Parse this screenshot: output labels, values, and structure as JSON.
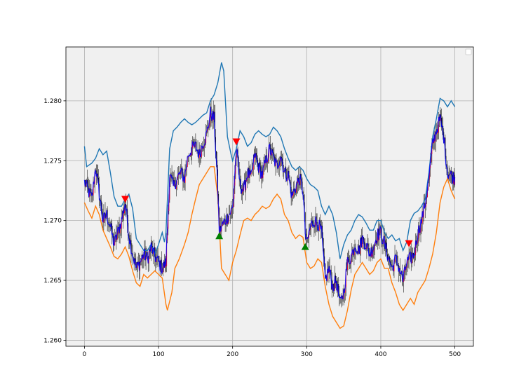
{
  "chart_data": {
    "type": "line",
    "title": "",
    "xlabel": "",
    "ylabel": "",
    "xlim": [
      -25,
      525
    ],
    "ylim": [
      1.2595,
      1.2845
    ],
    "x_ticks": [
      0,
      100,
      200,
      300,
      400,
      500
    ],
    "y_ticks": [
      1.26,
      1.265,
      1.27,
      1.275,
      1.28
    ],
    "x_tick_labels": [
      "0",
      "100",
      "200",
      "300",
      "400",
      "500"
    ],
    "y_tick_labels": [
      "1.260",
      "1.265",
      "1.270",
      "1.275",
      "1.280"
    ],
    "grid": true,
    "legend": {
      "position": "upper right",
      "entries": []
    },
    "colors": {
      "background": "#f0f0f0",
      "grid": "#b0b0b0",
      "price_line": "#0000ff",
      "candle_up": "#ff0000",
      "candle_down": "#000000",
      "upper_band": "#1f77b4",
      "lower_band": "#ff7f0e",
      "buy_marker": "#008000",
      "sell_marker": "#ff0000"
    },
    "price_path": [
      [
        0,
        1.2732
      ],
      [
        5,
        1.2725
      ],
      [
        10,
        1.2718
      ],
      [
        15,
        1.2745
      ],
      [
        20,
        1.2722
      ],
      [
        25,
        1.27
      ],
      [
        30,
        1.2705
      ],
      [
        35,
        1.2695
      ],
      [
        40,
        1.268
      ],
      [
        45,
        1.269
      ],
      [
        50,
        1.27
      ],
      [
        55,
        1.2715
      ],
      [
        60,
        1.2688
      ],
      [
        65,
        1.2672
      ],
      [
        70,
        1.266
      ],
      [
        75,
        1.2665
      ],
      [
        80,
        1.2672
      ],
      [
        85,
        1.2668
      ],
      [
        90,
        1.2678
      ],
      [
        95,
        1.267
      ],
      [
        100,
        1.2665
      ],
      [
        105,
        1.266
      ],
      [
        110,
        1.2665
      ],
      [
        115,
        1.2738
      ],
      [
        120,
        1.2728
      ],
      [
        125,
        1.2735
      ],
      [
        130,
        1.274
      ],
      [
        135,
        1.2735
      ],
      [
        140,
        1.2755
      ],
      [
        145,
        1.276
      ],
      [
        150,
        1.2762
      ],
      [
        155,
        1.2755
      ],
      [
        160,
        1.2765
      ],
      [
        165,
        1.2772
      ],
      [
        170,
        1.279
      ],
      [
        175,
        1.2785
      ],
      [
        180,
        1.2725
      ],
      [
        182,
        1.269
      ],
      [
        185,
        1.2695
      ],
      [
        190,
        1.27
      ],
      [
        195,
        1.2705
      ],
      [
        200,
        1.271
      ],
      [
        205,
        1.276
      ],
      [
        210,
        1.273
      ],
      [
        215,
        1.2725
      ],
      [
        220,
        1.274
      ],
      [
        225,
        1.2735
      ],
      [
        230,
        1.2755
      ],
      [
        235,
        1.2745
      ],
      [
        240,
        1.2738
      ],
      [
        245,
        1.275
      ],
      [
        250,
        1.276
      ],
      [
        255,
        1.2752
      ],
      [
        260,
        1.2745
      ],
      [
        265,
        1.2755
      ],
      [
        270,
        1.274
      ],
      [
        275,
        1.2738
      ],
      [
        280,
        1.272
      ],
      [
        285,
        1.2728
      ],
      [
        290,
        1.2735
      ],
      [
        295,
        1.2725
      ],
      [
        298,
        1.269
      ],
      [
        300,
        1.268
      ],
      [
        305,
        1.2695
      ],
      [
        310,
        1.27
      ],
      [
        315,
        1.2698
      ],
      [
        320,
        1.269
      ],
      [
        325,
        1.265
      ],
      [
        330,
        1.266
      ],
      [
        335,
        1.2645
      ],
      [
        340,
        1.265
      ],
      [
        345,
        1.263
      ],
      [
        350,
        1.264
      ],
      [
        355,
        1.2665
      ],
      [
        360,
        1.267
      ],
      [
        365,
        1.268
      ],
      [
        370,
        1.2675
      ],
      [
        375,
        1.2685
      ],
      [
        380,
        1.268
      ],
      [
        385,
        1.2672
      ],
      [
        390,
        1.2678
      ],
      [
        395,
        1.2688
      ],
      [
        400,
        1.269
      ],
      [
        405,
        1.268
      ],
      [
        410,
        1.267
      ],
      [
        415,
        1.266
      ],
      [
        420,
        1.2668
      ],
      [
        425,
        1.266
      ],
      [
        430,
        1.265
      ],
      [
        435,
        1.2665
      ],
      [
        440,
        1.2668
      ],
      [
        445,
        1.2672
      ],
      [
        450,
        1.269
      ],
      [
        455,
        1.27
      ],
      [
        460,
        1.2715
      ],
      [
        465,
        1.2735
      ],
      [
        470,
        1.2765
      ],
      [
        475,
        1.2775
      ],
      [
        480,
        1.2785
      ],
      [
        485,
        1.277
      ],
      [
        490,
        1.274
      ],
      [
        495,
        1.2738
      ],
      [
        500,
        1.2735
      ]
    ],
    "upper_band": [
      [
        0,
        1.2762
      ],
      [
        3,
        1.2745
      ],
      [
        10,
        1.2748
      ],
      [
        15,
        1.2752
      ],
      [
        20,
        1.276
      ],
      [
        25,
        1.2755
      ],
      [
        30,
        1.2758
      ],
      [
        35,
        1.274
      ],
      [
        40,
        1.272
      ],
      [
        45,
        1.2712
      ],
      [
        50,
        1.2712
      ],
      [
        55,
        1.2718
      ],
      [
        60,
        1.2722
      ],
      [
        65,
        1.271
      ],
      [
        70,
        1.2685
      ],
      [
        75,
        1.268
      ],
      [
        80,
        1.2675
      ],
      [
        85,
        1.2675
      ],
      [
        90,
        1.268
      ],
      [
        95,
        1.2672
      ],
      [
        100,
        1.268
      ],
      [
        105,
        1.269
      ],
      [
        108,
        1.2682
      ],
      [
        110,
        1.269
      ],
      [
        115,
        1.276
      ],
      [
        120,
        1.2775
      ],
      [
        125,
        1.2778
      ],
      [
        130,
        1.2782
      ],
      [
        135,
        1.2785
      ],
      [
        140,
        1.2782
      ],
      [
        145,
        1.278
      ],
      [
        150,
        1.2782
      ],
      [
        155,
        1.2785
      ],
      [
        160,
        1.2788
      ],
      [
        165,
        1.279
      ],
      [
        170,
        1.28
      ],
      [
        175,
        1.2805
      ],
      [
        180,
        1.2815
      ],
      [
        185,
        1.2832
      ],
      [
        188,
        1.2825
      ],
      [
        193,
        1.277
      ],
      [
        198,
        1.2755
      ],
      [
        200,
        1.275
      ],
      [
        205,
        1.276
      ],
      [
        210,
        1.2775
      ],
      [
        215,
        1.277
      ],
      [
        220,
        1.2762
      ],
      [
        225,
        1.2765
      ],
      [
        230,
        1.2772
      ],
      [
        235,
        1.2775
      ],
      [
        240,
        1.2772
      ],
      [
        245,
        1.277
      ],
      [
        250,
        1.2772
      ],
      [
        255,
        1.2778
      ],
      [
        260,
        1.2775
      ],
      [
        265,
        1.277
      ],
      [
        270,
        1.276
      ],
      [
        275,
        1.2752
      ],
      [
        280,
        1.2745
      ],
      [
        285,
        1.2742
      ],
      [
        290,
        1.2745
      ],
      [
        295,
        1.2742
      ],
      [
        300,
        1.2735
      ],
      [
        305,
        1.273
      ],
      [
        310,
        1.2728
      ],
      [
        315,
        1.2725
      ],
      [
        320,
        1.2712
      ],
      [
        325,
        1.2705
      ],
      [
        330,
        1.2712
      ],
      [
        335,
        1.2705
      ],
      [
        340,
        1.269
      ],
      [
        345,
        1.2668
      ],
      [
        350,
        1.268
      ],
      [
        355,
        1.2688
      ],
      [
        360,
        1.2692
      ],
      [
        365,
        1.27
      ],
      [
        370,
        1.2705
      ],
      [
        375,
        1.2703
      ],
      [
        380,
        1.2698
      ],
      [
        385,
        1.2692
      ],
      [
        390,
        1.2692
      ],
      [
        395,
        1.27
      ],
      [
        400,
        1.27
      ],
      [
        405,
        1.269
      ],
      [
        410,
        1.2685
      ],
      [
        415,
        1.2688
      ],
      [
        420,
        1.2683
      ],
      [
        425,
        1.2685
      ],
      [
        430,
        1.2675
      ],
      [
        435,
        1.2682
      ],
      [
        440,
        1.27
      ],
      [
        445,
        1.2706
      ],
      [
        450,
        1.2708
      ],
      [
        455,
        1.2712
      ],
      [
        460,
        1.2718
      ],
      [
        465,
        1.274
      ],
      [
        470,
        1.277
      ],
      [
        475,
        1.2785
      ],
      [
        480,
        1.2802
      ],
      [
        485,
        1.28
      ],
      [
        490,
        1.2795
      ],
      [
        495,
        1.28
      ],
      [
        500,
        1.2795
      ]
    ],
    "lower_band": [
      [
        0,
        1.2715
      ],
      [
        5,
        1.2708
      ],
      [
        10,
        1.2702
      ],
      [
        15,
        1.2712
      ],
      [
        20,
        1.2705
      ],
      [
        25,
        1.2692
      ],
      [
        30,
        1.2685
      ],
      [
        35,
        1.2678
      ],
      [
        40,
        1.267
      ],
      [
        45,
        1.2668
      ],
      [
        50,
        1.2672
      ],
      [
        55,
        1.2678
      ],
      [
        60,
        1.267
      ],
      [
        65,
        1.2658
      ],
      [
        70,
        1.2648
      ],
      [
        75,
        1.2645
      ],
      [
        80,
        1.2655
      ],
      [
        85,
        1.2652
      ],
      [
        90,
        1.2655
      ],
      [
        95,
        1.2658
      ],
      [
        100,
        1.2655
      ],
      [
        105,
        1.2652
      ],
      [
        110,
        1.263
      ],
      [
        112,
        1.2625
      ],
      [
        118,
        1.264
      ],
      [
        122,
        1.266
      ],
      [
        128,
        1.2668
      ],
      [
        135,
        1.268
      ],
      [
        140,
        1.269
      ],
      [
        145,
        1.2705
      ],
      [
        150,
        1.2718
      ],
      [
        155,
        1.273
      ],
      [
        160,
        1.2735
      ],
      [
        165,
        1.274
      ],
      [
        170,
        1.2745
      ],
      [
        175,
        1.2745
      ],
      [
        180,
        1.272
      ],
      [
        185,
        1.266
      ],
      [
        190,
        1.2655
      ],
      [
        195,
        1.265
      ],
      [
        200,
        1.2665
      ],
      [
        205,
        1.2675
      ],
      [
        210,
        1.2688
      ],
      [
        215,
        1.27
      ],
      [
        220,
        1.2702
      ],
      [
        225,
        1.27
      ],
      [
        230,
        1.2705
      ],
      [
        235,
        1.2708
      ],
      [
        240,
        1.2712
      ],
      [
        245,
        1.271
      ],
      [
        250,
        1.2712
      ],
      [
        255,
        1.2718
      ],
      [
        260,
        1.2722
      ],
      [
        265,
        1.2718
      ],
      [
        270,
        1.2705
      ],
      [
        275,
        1.27
      ],
      [
        280,
        1.269
      ],
      [
        285,
        1.2685
      ],
      [
        290,
        1.2688
      ],
      [
        295,
        1.2686
      ],
      [
        300,
        1.2665
      ],
      [
        305,
        1.266
      ],
      [
        310,
        1.2662
      ],
      [
        315,
        1.2668
      ],
      [
        320,
        1.2665
      ],
      [
        325,
        1.2645
      ],
      [
        330,
        1.263
      ],
      [
        335,
        1.262
      ],
      [
        340,
        1.2615
      ],
      [
        345,
        1.261
      ],
      [
        350,
        1.2612
      ],
      [
        355,
        1.2625
      ],
      [
        360,
        1.2642
      ],
      [
        365,
        1.2655
      ],
      [
        370,
        1.266
      ],
      [
        375,
        1.2665
      ],
      [
        380,
        1.266
      ],
      [
        385,
        1.2655
      ],
      [
        390,
        1.2658
      ],
      [
        395,
        1.2665
      ],
      [
        400,
        1.2668
      ],
      [
        405,
        1.266
      ],
      [
        410,
        1.266
      ],
      [
        415,
        1.2648
      ],
      [
        420,
        1.264
      ],
      [
        425,
        1.263
      ],
      [
        430,
        1.2625
      ],
      [
        435,
        1.263
      ],
      [
        440,
        1.2635
      ],
      [
        445,
        1.263
      ],
      [
        450,
        1.264
      ],
      [
        455,
        1.2645
      ],
      [
        460,
        1.265
      ],
      [
        465,
        1.266
      ],
      [
        470,
        1.2672
      ],
      [
        475,
        1.269
      ],
      [
        480,
        1.2715
      ],
      [
        485,
        1.2728
      ],
      [
        490,
        1.2735
      ],
      [
        495,
        1.2725
      ],
      [
        500,
        1.2718
      ]
    ],
    "buy_signals": [
      [
        182,
        1.2687
      ],
      [
        298,
        1.2678
      ]
    ],
    "sell_signals": [
      [
        55,
        1.2718
      ],
      [
        205,
        1.2766
      ],
      [
        438,
        1.2681
      ]
    ]
  }
}
